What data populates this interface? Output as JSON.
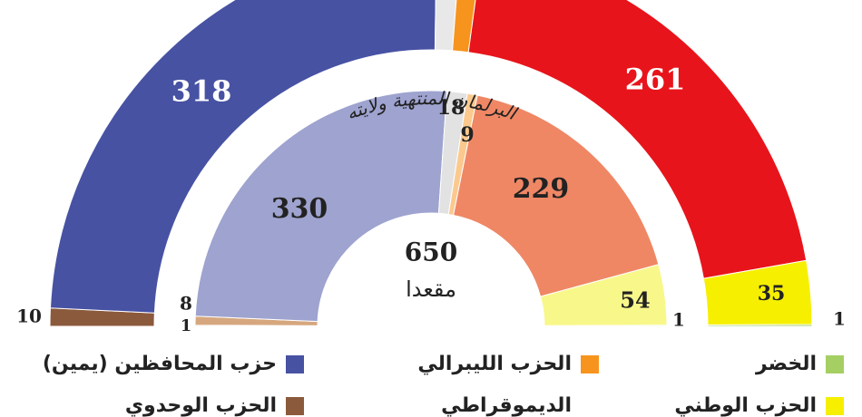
{
  "chart_data": {
    "type": "parliament",
    "rings": [
      {
        "values": [
          10,
          318,
          13,
          12,
          261,
          35,
          1
        ],
        "colors": [
          "#8b5a3c",
          "#4752a3",
          "#e8e8e8",
          "#f7941d",
          "#e8141b",
          "#f6ef00",
          "#a5cf63"
        ],
        "value_labels": [
          "10",
          "318",
          null,
          null,
          "261",
          "35",
          "1"
        ]
      },
      {
        "name": "البرلمان المنتهية ولايته",
        "values": [
          1,
          8,
          330,
          18,
          9,
          229,
          54,
          1
        ],
        "colors": [
          "#8d6b9c",
          "#d6a77e",
          "#9ea3cf",
          "#e2e2e2",
          "#fbc98e",
          "#ef8765",
          "#f8f78a",
          "#c5e09b"
        ],
        "value_labels": [
          "1",
          "8",
          "330",
          "18",
          "9",
          "229",
          "54",
          "1"
        ]
      }
    ],
    "total": 650,
    "total_label": "مقعدا",
    "legend": [
      {
        "text": "الخضر",
        "color": "#a5cf63"
      },
      {
        "text": "الحزب الليبرالي",
        "color": "#f7941d"
      },
      {
        "text": "حزب المحافظين (يمين)",
        "color": "#4752a3"
      },
      {
        "text": "الحزب الوطني",
        "color": "#f6ef00"
      },
      {
        "text": "الديموقراطي",
        "color": null
      },
      {
        "text": "الحزب الوحدوي",
        "color": "#8b5a3c"
      }
    ]
  }
}
